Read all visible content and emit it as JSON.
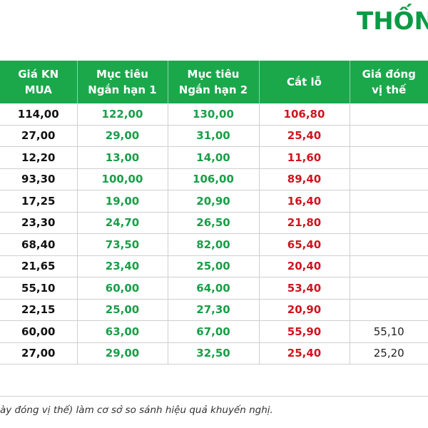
{
  "title": "THỐN",
  "table": {
    "headers": [
      [
        "Giá KN",
        "MUA"
      ],
      [
        "Mục tiêu",
        "Ngắn hạn 1"
      ],
      [
        "Mục tiêu",
        "Ngắn hạn 2"
      ],
      [
        "Cắt lỗ"
      ],
      [
        "Giá đóng",
        "vị thế"
      ]
    ],
    "rows": [
      {
        "buy": "114,00",
        "t1": "122,00",
        "t2": "130,00",
        "stop": "106,80",
        "close": ""
      },
      {
        "buy": "27,00",
        "t1": "29,00",
        "t2": "31,00",
        "stop": "25,40",
        "close": ""
      },
      {
        "buy": "12,20",
        "t1": "13,00",
        "t2": "14,00",
        "stop": "11,60",
        "close": ""
      },
      {
        "buy": "93,30",
        "t1": "100,00",
        "t2": "106,00",
        "stop": "89,40",
        "close": ""
      },
      {
        "buy": "17,25",
        "t1": "19,00",
        "t2": "20,90",
        "stop": "16,40",
        "close": ""
      },
      {
        "buy": "23,30",
        "t1": "24,70",
        "t2": "26,50",
        "stop": "21,80",
        "close": ""
      },
      {
        "buy": "68,40",
        "t1": "73,50",
        "t2": "82,00",
        "stop": "65,40",
        "close": ""
      },
      {
        "buy": "21,65",
        "t1": "23,40",
        "t2": "25,00",
        "stop": "20,40",
        "close": ""
      },
      {
        "buy": "55,10",
        "t1": "60,00",
        "t2": "64,00",
        "stop": "53,40",
        "close": ""
      },
      {
        "buy": "22,15",
        "t1": "25,00",
        "t2": "27,30",
        "stop": "20,90",
        "close": ""
      },
      {
        "buy": "60,00",
        "t1": "63,00",
        "t2": "67,00",
        "stop": "55,90",
        "close": "55,10"
      },
      {
        "buy": "27,00",
        "t1": "29,00",
        "t2": "32,50",
        "stop": "25,40",
        "close": "25,20"
      }
    ]
  },
  "footnote": "ày đóng vị thế) làm cơ sở so sánh hiệu quả khuyến nghị.",
  "colors": {
    "header_bg": "#1aa84b",
    "target": "#1a9e48",
    "stop_loss": "#d0141e",
    "title": "#0a9a45"
  }
}
